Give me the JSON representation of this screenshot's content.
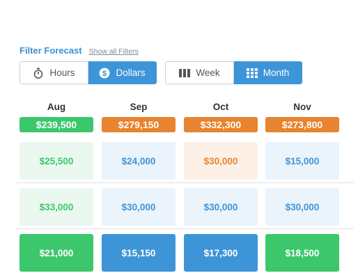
{
  "filter": {
    "title": "Filter Forecast",
    "link": "Show all Filters"
  },
  "units": {
    "hours": "Hours",
    "dollars": "Dollars",
    "active": "dollars"
  },
  "periods": {
    "week": "Week",
    "month": "Month",
    "active": "month"
  },
  "colors": {
    "accent": "#3d95d8",
    "green": "#3cc76d",
    "orange": "#e8832f",
    "light_green_bg": "#eaf8ef",
    "light_blue_bg": "#ebf3fb",
    "light_orange_bg": "#fdf1e7",
    "green_text": "#3cc76d",
    "blue_text": "#3d95d8",
    "orange_text": "#e8832f"
  },
  "months": [
    {
      "name": "Aug",
      "total": "$239,500",
      "total_color": "green"
    },
    {
      "name": "Sep",
      "total": "$279,150",
      "total_color": "orange"
    },
    {
      "name": "Oct",
      "total": "$332,300",
      "total_color": "orange"
    },
    {
      "name": "Nov",
      "total": "$273,800",
      "total_color": "orange"
    }
  ],
  "rows": [
    [
      {
        "value": "$25,500",
        "style": "light-green"
      },
      {
        "value": "$24,000",
        "style": "light-blue"
      },
      {
        "value": "$30,000",
        "style": "light-orange"
      },
      {
        "value": "$15,000",
        "style": "light-blue"
      }
    ],
    [
      {
        "value": "$33,000",
        "style": "light-green"
      },
      {
        "value": "$30,000",
        "style": "light-blue"
      },
      {
        "value": "$30,000",
        "style": "light-blue"
      },
      {
        "value": "$30,000",
        "style": "light-blue"
      }
    ],
    [
      {
        "value": "$21,000",
        "style": "solid-green"
      },
      {
        "value": "$15,150",
        "style": "solid-blue"
      },
      {
        "value": "$17,300",
        "style": "solid-blue"
      },
      {
        "value": "$18,500",
        "style": "solid-green"
      }
    ]
  ]
}
